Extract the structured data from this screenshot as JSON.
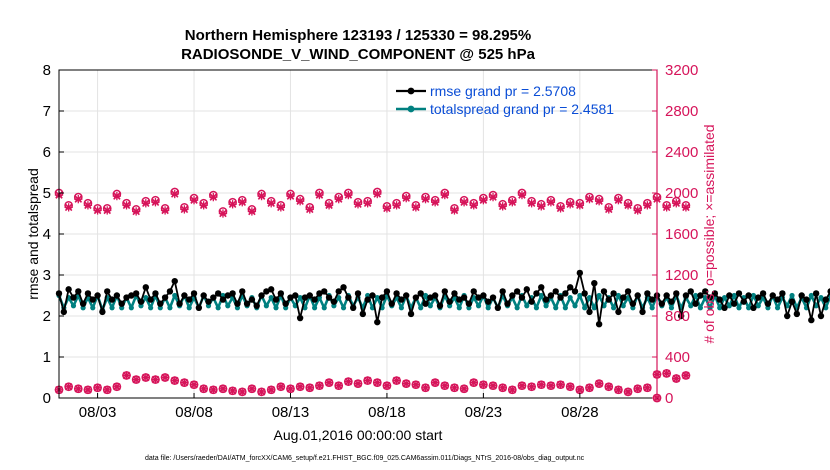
{
  "chart_data": {
    "type": "line",
    "title_line1": "Northern Hemisphere 123193 / 125330 = 98.295%",
    "title_line2": "RADIOSONDE_V_WIND_COMPONENT @ 525 hPa",
    "xlabel": "Aug.01,2016 00:00:00 start",
    "ylabel_left": "rmse and totalspread",
    "ylabel_right": "# of obs: o=possible; ×=assimilated",
    "footer": "data file: /Users/raeder/DAI/ATM_forcXX/CAM6_setup/f.e21.FHIST_BGC.f09_025.CAM6assim.011/Diags_NTrS_2016-08/obs_diag_output.nc",
    "x_tick_labels": [
      "08/03",
      "08/08",
      "08/13",
      "08/18",
      "08/23",
      "08/28"
    ],
    "x_tick_days": [
      3,
      8,
      13,
      18,
      23,
      28
    ],
    "xlim": [
      1,
      32
    ],
    "ylim_left": [
      0,
      8
    ],
    "y_ticks_left": [
      "0",
      "1",
      "2",
      "3",
      "4",
      "5",
      "6",
      "7",
      "8"
    ],
    "ylim_right": [
      0,
      3200
    ],
    "y_ticks_right": [
      "0",
      "400",
      "800",
      "1200",
      "1600",
      "2000",
      "2400",
      "2800",
      "3200"
    ],
    "legend_position": "top-right",
    "colors": {
      "rmse": "#000000",
      "spread": "#008080",
      "obs": "#d6145a",
      "legend_text": "#0a4dd6",
      "axis_right": "#d6145a"
    },
    "series": [
      {
        "name": "rmse grand pr = 2.5708",
        "x_start": 1.0,
        "x_step": 0.25,
        "values": [
          2.55,
          2.1,
          2.65,
          2.45,
          2.6,
          2.3,
          2.55,
          2.4,
          2.5,
          2.1,
          2.6,
          2.4,
          2.5,
          2.3,
          2.45,
          2.5,
          2.55,
          2.35,
          2.7,
          2.4,
          2.55,
          2.3,
          2.45,
          2.6,
          2.85,
          2.3,
          2.5,
          2.4,
          2.55,
          2.2,
          2.5,
          2.35,
          2.45,
          2.55,
          2.4,
          2.5,
          2.55,
          2.3,
          2.6,
          2.3,
          2.4,
          2.25,
          2.5,
          2.6,
          2.65,
          2.4,
          2.55,
          2.3,
          2.45,
          2.5,
          1.95,
          2.45,
          2.5,
          2.4,
          2.55,
          2.6,
          2.45,
          2.35,
          2.6,
          2.7,
          2.45,
          2.2,
          2.55,
          2.05,
          2.4,
          2.5,
          1.85,
          2.45,
          2.6,
          2.3,
          2.55,
          2.4,
          2.5,
          2.05,
          2.45,
          2.55,
          2.3,
          2.45,
          2.5,
          2.25,
          2.6,
          2.35,
          2.55,
          2.4,
          2.45,
          2.3,
          2.6,
          2.45,
          2.5,
          2.35,
          2.45,
          2.2,
          2.6,
          2.3,
          2.5,
          2.6,
          2.45,
          2.65,
          2.35,
          2.55,
          2.7,
          2.4,
          2.5,
          2.6,
          2.45,
          2.55,
          2.7,
          2.6,
          3.05,
          2.55,
          2.1,
          2.8,
          1.8,
          2.6,
          2.4,
          2.55,
          2.1,
          2.45,
          2.6,
          2.3,
          2.5,
          2.1,
          2.55,
          2.4,
          2.5,
          2.3,
          2.5,
          2.35,
          2.55,
          2.0,
          2.5,
          2.6,
          2.3,
          2.5,
          2.6,
          2.45,
          2.55,
          2.4,
          2.2,
          2.5,
          2.3,
          2.55,
          2.35,
          2.5,
          2.2,
          2.45,
          2.55,
          2.3,
          2.5,
          2.4,
          2.55,
          2.0,
          2.35,
          2.05,
          2.5,
          2.4,
          1.9,
          2.55,
          2.0,
          2.4,
          2.6,
          2.3,
          2.45,
          2.0
        ]
      },
      {
        "name": "totalspread grand pr = 2.4581",
        "x_start": 1.0,
        "x_step": 0.25,
        "values": [
          2.5,
          2.2,
          2.45,
          2.25,
          2.5,
          2.2,
          2.45,
          2.2,
          2.5,
          2.15,
          2.45,
          2.2,
          2.5,
          2.2,
          2.45,
          2.2,
          2.5,
          2.25,
          2.45,
          2.2,
          2.5,
          2.2,
          2.45,
          2.2,
          2.5,
          2.25,
          2.5,
          2.2,
          2.45,
          2.2,
          2.5,
          2.25,
          2.45,
          2.2,
          2.5,
          2.25,
          2.45,
          2.2,
          2.5,
          2.25,
          2.45,
          2.2,
          2.5,
          2.25,
          2.45,
          2.2,
          2.5,
          2.2,
          2.45,
          2.25,
          2.45,
          2.2,
          2.5,
          2.2,
          2.45,
          2.2,
          2.5,
          2.25,
          2.45,
          2.2,
          2.5,
          2.25,
          2.45,
          2.2,
          2.5,
          2.2,
          2.45,
          2.2,
          2.5,
          2.25,
          2.45,
          2.2,
          2.5,
          2.2,
          2.45,
          2.2,
          2.5,
          2.25,
          2.45,
          2.2,
          2.5,
          2.25,
          2.45,
          2.2,
          2.5,
          2.2,
          2.45,
          2.25,
          2.5,
          2.2,
          2.45,
          2.2,
          2.5,
          2.25,
          2.45,
          2.2,
          2.5,
          2.25,
          2.45,
          2.2,
          2.5,
          2.25,
          2.45,
          2.2,
          2.5,
          2.2,
          2.45,
          2.25,
          2.5,
          2.2,
          2.45,
          2.2,
          2.5,
          2.25,
          2.45,
          2.2,
          2.5,
          2.25,
          2.45,
          2.2,
          2.5,
          2.2,
          2.45,
          2.2,
          2.5,
          2.25,
          2.45,
          2.2,
          2.5,
          2.2,
          2.45,
          2.25,
          2.5,
          2.2,
          2.45,
          2.2,
          2.5,
          2.2,
          2.45,
          2.25,
          2.5,
          2.2,
          2.45,
          2.2,
          2.5,
          2.25,
          2.45,
          2.2,
          2.5,
          2.2,
          2.45,
          2.25,
          2.5,
          2.2,
          2.45,
          2.2,
          2.5,
          2.25,
          2.45,
          2.2,
          2.5,
          2.25,
          2.45,
          2.2,
          2.5,
          2.2
        ]
      }
    ],
    "obs_upper": {
      "x_start": 1.0,
      "x_step": 0.5,
      "possible": [
        2000,
        1880,
        1960,
        1900,
        1850,
        1850,
        1990,
        1900,
        1840,
        1920,
        1930,
        1850,
        2010,
        1860,
        1950,
        1900,
        1980,
        1820,
        1910,
        1930,
        1840,
        1990,
        1920,
        1880,
        1990,
        1940,
        1860,
        2000,
        1900,
        1960,
        2000,
        1910,
        1920,
        2010,
        1870,
        1900,
        1970,
        1880,
        1960,
        1930,
        2000,
        1850,
        1930,
        1900,
        1950,
        1980,
        1890,
        1930,
        2000,
        1920,
        1890,
        1930,
        1870,
        1910,
        1900,
        1960,
        1940,
        1860,
        1950,
        1900,
        1850,
        1900,
        1960,
        1880,
        1920,
        1880
      ],
      "assimilated": [
        1980,
        1860,
        1940,
        1880,
        1830,
        1830,
        1970,
        1880,
        1820,
        1900,
        1910,
        1830,
        1990,
        1840,
        1930,
        1880,
        1960,
        1800,
        1890,
        1910,
        1820,
        1970,
        1900,
        1860,
        1970,
        1920,
        1840,
        1980,
        1880,
        1940,
        1980,
        1890,
        1900,
        1990,
        1850,
        1880,
        1950,
        1860,
        1940,
        1910,
        1980,
        1830,
        1910,
        1880,
        1930,
        1960,
        1870,
        1910,
        1980,
        1900,
        1870,
        1910,
        1850,
        1890,
        1880,
        1940,
        1920,
        1840,
        1930,
        1880,
        1830,
        1880,
        1940,
        1860,
        1900,
        1860
      ]
    },
    "obs_lower": {
      "x_start": 1.0,
      "x_step": 0.5,
      "possible": [
        80,
        110,
        90,
        80,
        100,
        80,
        110,
        220,
        180,
        200,
        180,
        200,
        170,
        150,
        130,
        90,
        80,
        90,
        70,
        60,
        90,
        60,
        80,
        110,
        90,
        110,
        100,
        120,
        150,
        120,
        160,
        140,
        170,
        150,
        120,
        170,
        140,
        130,
        100,
        150,
        120,
        100,
        90,
        150,
        130,
        120,
        100,
        80,
        120,
        110,
        130,
        120,
        130,
        110,
        80,
        100,
        140,
        110,
        80,
        60,
        90,
        100,
        230,
        240,
        190,
        220
      ],
      "assimilated": [
        80,
        110,
        90,
        80,
        100,
        80,
        110,
        220,
        180,
        200,
        180,
        200,
        170,
        150,
        130,
        90,
        80,
        90,
        70,
        60,
        90,
        60,
        80,
        110,
        90,
        110,
        100,
        120,
        150,
        120,
        160,
        140,
        170,
        150,
        120,
        170,
        140,
        130,
        100,
        150,
        120,
        100,
        90,
        150,
        130,
        120,
        100,
        80,
        120,
        110,
        130,
        120,
        130,
        110,
        80,
        100,
        140,
        110,
        80,
        60,
        90,
        100,
        230,
        240,
        190,
        220
      ]
    },
    "obs_end_point": {
      "x": 32,
      "value": 0
    }
  }
}
